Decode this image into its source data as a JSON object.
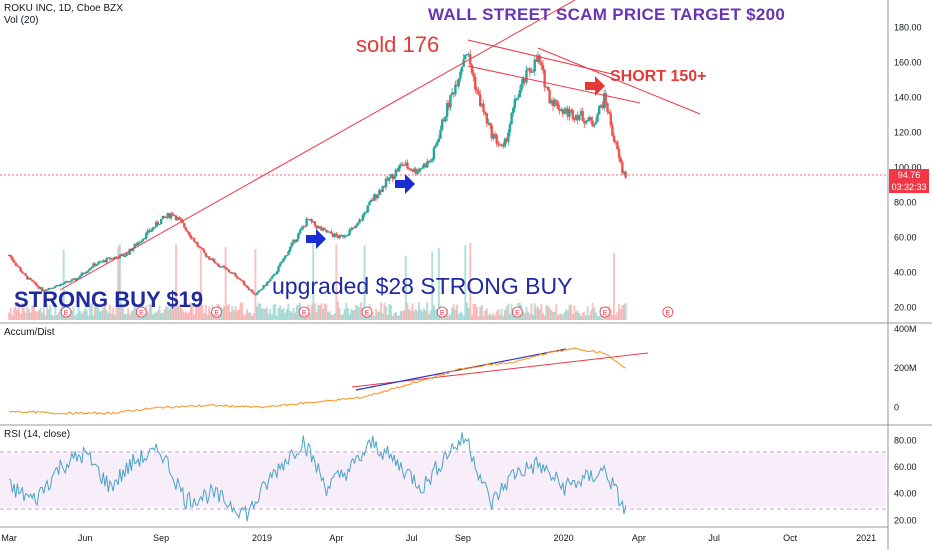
{
  "header": {
    "symbol_line": "ROKU INC, 1D, Cboe BZX",
    "volume_label": "Vol (20)"
  },
  "indicators": {
    "accum_title": "Accum/Dist",
    "rsi_title": "RSI (14, close)"
  },
  "annotations": {
    "target": "WALL STREET SCAM PRICE TARGET $200",
    "sold": "sold 176",
    "short": "SHORT 150+",
    "strong_buy": "STRONG BUY $19",
    "upgraded": "upgraded $28 STRONG BUY"
  },
  "price_axis": {
    "labels": [
      "180.00",
      "160.00",
      "140.00",
      "120.00",
      "100.00",
      "80.00",
      "60.00",
      "40.00",
      "20.00"
    ],
    "current_price": "94.76",
    "countdown": "03:32:33"
  },
  "accum_axis": {
    "labels": [
      "400M",
      "200M",
      "0"
    ]
  },
  "rsi_axis": {
    "labels": [
      "80.00",
      "60.00",
      "40.00",
      "20.00"
    ]
  },
  "time_axis": {
    "labels": [
      "Mar",
      "Jun",
      "Sep",
      "2019",
      "Apr",
      "Jul",
      "Sep",
      "2020",
      "Apr",
      "Jul",
      "Oct",
      "2021"
    ]
  },
  "earnings_marker": "E",
  "colors": {
    "up": "#26a69a",
    "down": "#ef5350",
    "trendline": "#f23645",
    "rsi_line": "#4ba3c7",
    "rsi_band": "#9c27b0",
    "ad_line": "#f7931e",
    "blue_trend": "#2b36c9",
    "title_purple": "#6a35b5",
    "annotation_red": "#e53935",
    "annotation_blue": "#1e2a9e"
  },
  "chart_data": {
    "type": "candlestick",
    "symbol": "ROKU INC",
    "interval": "1D",
    "exchange": "Cboe BZX",
    "price_range": [
      10,
      190
    ],
    "price_series": [
      {
        "date": "2018-03-01",
        "close": 50
      },
      {
        "date": "2018-03-20",
        "close": 38
      },
      {
        "date": "2018-04-10",
        "close": 30
      },
      {
        "date": "2018-05-01",
        "close": 33
      },
      {
        "date": "2018-05-20",
        "close": 36
      },
      {
        "date": "2018-06-10",
        "close": 44
      },
      {
        "date": "2018-07-01",
        "close": 48
      },
      {
        "date": "2018-07-20",
        "close": 50
      },
      {
        "date": "2018-08-10",
        "close": 60
      },
      {
        "date": "2018-09-01",
        "close": 70
      },
      {
        "date": "2018-09-15",
        "close": 74
      },
      {
        "date": "2018-10-01",
        "close": 65
      },
      {
        "date": "2018-10-20",
        "close": 52
      },
      {
        "date": "2018-11-10",
        "close": 44
      },
      {
        "date": "2018-12-01",
        "close": 38
      },
      {
        "date": "2018-12-24",
        "close": 27
      },
      {
        "date": "2019-01-15",
        "close": 38
      },
      {
        "date": "2019-02-05",
        "close": 55
      },
      {
        "date": "2019-02-25",
        "close": 70
      },
      {
        "date": "2019-03-15",
        "close": 64
      },
      {
        "date": "2019-04-05",
        "close": 60
      },
      {
        "date": "2019-04-25",
        "close": 66
      },
      {
        "date": "2019-05-15",
        "close": 82
      },
      {
        "date": "2019-06-01",
        "close": 92
      },
      {
        "date": "2019-06-20",
        "close": 102
      },
      {
        "date": "2019-07-05",
        "close": 98
      },
      {
        "date": "2019-07-25",
        "close": 104
      },
      {
        "date": "2019-08-10",
        "close": 130
      },
      {
        "date": "2019-08-25",
        "close": 150
      },
      {
        "date": "2019-09-05",
        "close": 168
      },
      {
        "date": "2019-09-20",
        "close": 140
      },
      {
        "date": "2019-10-05",
        "close": 120
      },
      {
        "date": "2019-10-20",
        "close": 110
      },
      {
        "date": "2019-11-05",
        "close": 140
      },
      {
        "date": "2019-11-20",
        "close": 155
      },
      {
        "date": "2019-12-01",
        "close": 162
      },
      {
        "date": "2019-12-15",
        "close": 140
      },
      {
        "date": "2020-01-01",
        "close": 132
      },
      {
        "date": "2020-01-20",
        "close": 130
      },
      {
        "date": "2020-02-05",
        "close": 125
      },
      {
        "date": "2020-02-20",
        "close": 140
      },
      {
        "date": "2020-03-01",
        "close": 118
      },
      {
        "date": "2020-03-12",
        "close": 98
      },
      {
        "date": "2020-03-17",
        "close": 94.76
      }
    ],
    "accum_dist": [
      {
        "date": "2018-03-01",
        "value": -20
      },
      {
        "date": "2018-05-01",
        "value": -30
      },
      {
        "date": "2018-07-01",
        "value": -30
      },
      {
        "date": "2018-09-01",
        "value": 0
      },
      {
        "date": "2018-11-01",
        "value": 10
      },
      {
        "date": "2019-01-01",
        "value": 0
      },
      {
        "date": "2019-03-01",
        "value": 25
      },
      {
        "date": "2019-05-01",
        "value": 50
      },
      {
        "date": "2019-07-01",
        "value": 120
      },
      {
        "date": "2019-09-01",
        "value": 200
      },
      {
        "date": "2019-11-01",
        "value": 230
      },
      {
        "date": "2019-12-15",
        "value": 280
      },
      {
        "date": "2020-01-15",
        "value": 300
      },
      {
        "date": "2020-02-20",
        "value": 275
      },
      {
        "date": "2020-03-17",
        "value": 195
      }
    ],
    "accum_range": [
      -90,
      420
    ],
    "rsi": [
      {
        "date": "2018-03-01",
        "value": 45
      },
      {
        "date": "2018-04-01",
        "value": 35
      },
      {
        "date": "2018-05-01",
        "value": 60
      },
      {
        "date": "2018-06-01",
        "value": 70
      },
      {
        "date": "2018-07-01",
        "value": 45
      },
      {
        "date": "2018-08-01",
        "value": 65
      },
      {
        "date": "2018-09-01",
        "value": 72
      },
      {
        "date": "2018-10-01",
        "value": 35
      },
      {
        "date": "2018-11-01",
        "value": 40
      },
      {
        "date": "2018-12-15",
        "value": 25
      },
      {
        "date": "2019-01-15",
        "value": 55
      },
      {
        "date": "2019-02-20",
        "value": 80
      },
      {
        "date": "2019-03-20",
        "value": 45
      },
      {
        "date": "2019-04-20",
        "value": 60
      },
      {
        "date": "2019-05-15",
        "value": 78
      },
      {
        "date": "2019-06-15",
        "value": 62
      },
      {
        "date": "2019-07-15",
        "value": 45
      },
      {
        "date": "2019-08-15",
        "value": 72
      },
      {
        "date": "2019-09-05",
        "value": 82
      },
      {
        "date": "2019-10-05",
        "value": 32
      },
      {
        "date": "2019-11-01",
        "value": 55
      },
      {
        "date": "2019-12-01",
        "value": 62
      },
      {
        "date": "2020-01-01",
        "value": 45
      },
      {
        "date": "2020-02-01",
        "value": 52
      },
      {
        "date": "2020-02-20",
        "value": 58
      },
      {
        "date": "2020-03-17",
        "value": 25
      }
    ],
    "rsi_range": [
      15,
      90
    ],
    "rsi_bands": [
      70,
      30
    ],
    "x_range": [
      "2018-02-18",
      "2021-01-25"
    ]
  }
}
